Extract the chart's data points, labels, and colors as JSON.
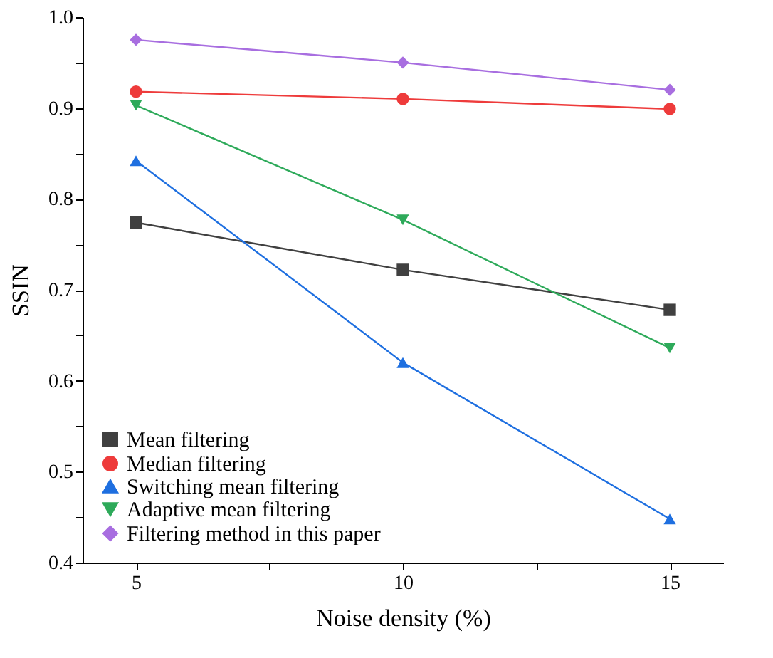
{
  "chart_data": {
    "type": "line",
    "xlabel": "Noise density (%)",
    "ylabel": "SSIN",
    "x": [
      5,
      10,
      15
    ],
    "xlim": [
      4,
      16
    ],
    "xticks": [
      5,
      {
        "value": 7.5,
        "label": null
      },
      10,
      {
        "value": 12.5,
        "label": null
      },
      15
    ],
    "ylim": [
      0.4,
      1.0
    ],
    "yticks": [
      0.4,
      {
        "value": 0.45,
        "label": null
      },
      0.5,
      {
        "value": 0.55,
        "label": null
      },
      0.6,
      {
        "value": 0.65,
        "label": null
      },
      0.7,
      {
        "value": 0.75,
        "label": null
      },
      0.8,
      {
        "value": 0.85,
        "label": null
      },
      0.9,
      {
        "value": 0.95,
        "label": null
      },
      {
        "value": 1.0,
        "label": "1.0"
      }
    ],
    "grid": false,
    "legend": "bottom left",
    "line_style": "solid",
    "series": [
      {
        "name": "Mean filtering",
        "color": "#404040",
        "marker": "square",
        "values": [
          0.774,
          0.722,
          0.678
        ]
      },
      {
        "name": "Median filtering",
        "color": "#ee3b3b",
        "marker": "circle",
        "values": [
          0.918,
          0.91,
          0.899
        ]
      },
      {
        "name": "Switching mean filtering",
        "color": "#1e6fe0",
        "marker": "triangle",
        "values": [
          0.842,
          0.62,
          0.448
        ]
      },
      {
        "name": "Adaptive mean filtering",
        "color": "#2eaa5a",
        "marker": "triangle-down",
        "values": [
          0.903,
          0.777,
          0.636
        ]
      },
      {
        "name": "Filtering method in this paper",
        "color": "#a86ee0",
        "marker": "diamond",
        "values": [
          0.975,
          0.95,
          0.92
        ]
      }
    ]
  }
}
